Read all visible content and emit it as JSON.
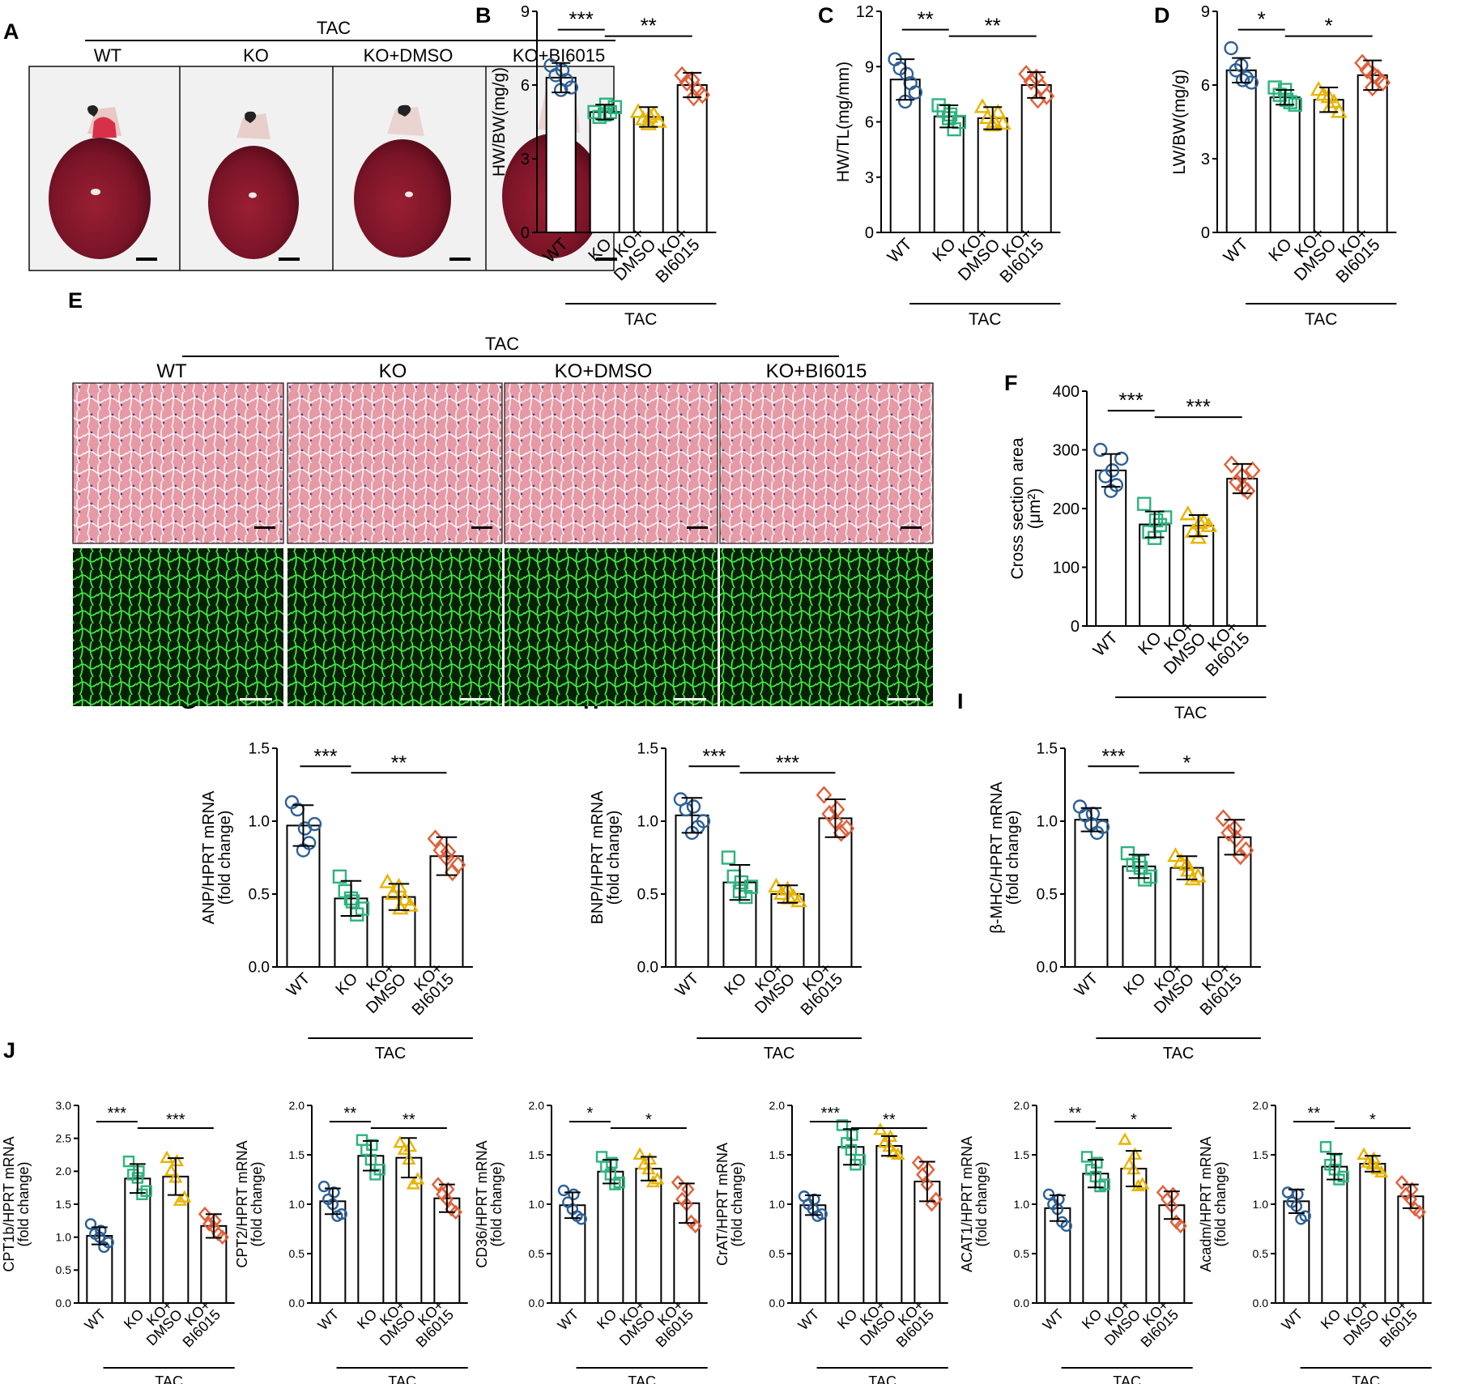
{
  "figure": {
    "labels": {
      "A": "A",
      "B": "B",
      "C": "C",
      "D": "D",
      "E": "E",
      "F": "F",
      "G": "G",
      "H": "H",
      "I": "I",
      "J": "J"
    },
    "colors": {
      "WT": "#2e6096",
      "KO": "#2db37e",
      "KO+DMSO": "#e8b400",
      "KO+BI6015": "#e0603a"
    },
    "group_label": "TAC",
    "markers": {
      "WT": "circle",
      "KO": "square",
      "KO+DMSO": "triangle",
      "KO+BI6015": "diamond"
    }
  },
  "panel_a": {
    "bracket_label": "TAC",
    "groups": [
      "WT",
      "KO",
      "KO+DMSO",
      "KO+BI6015"
    ]
  },
  "panel_e": {
    "bracket_label": "TAC",
    "groups": [
      "WT",
      "KO",
      "KO+DMSO",
      "KO+BI6015"
    ]
  },
  "chart_data": [
    {
      "id": "B",
      "type": "bar",
      "categories": [
        "WT",
        "KO",
        "KO+\nDMSO",
        "KO+\nBI6015"
      ],
      "bracket_label": "TAC",
      "ylabel": "HW/BW(mg/g)",
      "ylim": [
        0,
        9
      ],
      "yticks": [
        "0",
        "3",
        "6",
        "9"
      ],
      "values": [
        6.3,
        4.9,
        4.7,
        6.0
      ],
      "errors": [
        0.6,
        0.3,
        0.4,
        0.5
      ],
      "points": [
        [
          6.8,
          5.9,
          6.4,
          6.2,
          5.8,
          6.6
        ],
        [
          4.9,
          5.1,
          4.7,
          4.9,
          4.8,
          5.2
        ],
        [
          4.9,
          4.5,
          4.6,
          4.8,
          4.4,
          4.7
        ],
        [
          6.4,
          5.6,
          6.1,
          5.8,
          6.2,
          5.5
        ]
      ],
      "significance": [
        {
          "from": 0,
          "to": 1,
          "label": "***"
        },
        {
          "from": 1,
          "to": 3,
          "label": "**"
        }
      ]
    },
    {
      "id": "C",
      "type": "bar",
      "categories": [
        "WT",
        "KO",
        "KO+\nDMSO",
        "KO+\nBI6015"
      ],
      "bracket_label": "TAC",
      "ylabel": "HW/TL(mg/mm)",
      "ylim": [
        0,
        12
      ],
      "yticks": [
        "0",
        "3",
        "6",
        "9",
        "12"
      ],
      "values": [
        8.3,
        6.3,
        6.2,
        8.0
      ],
      "errors": [
        1.1,
        0.6,
        0.6,
        0.7
      ],
      "points": [
        [
          9.4,
          7.6,
          8.9,
          8.1,
          7.1,
          8.6
        ],
        [
          6.9,
          6.0,
          6.6,
          5.6,
          6.2,
          6.4
        ],
        [
          6.8,
          5.9,
          6.2,
          6.5,
          5.8,
          6.0
        ],
        [
          8.6,
          7.4,
          8.2,
          7.9,
          8.4,
          7.2
        ]
      ],
      "significance": [
        {
          "from": 0,
          "to": 1,
          "label": "**"
        },
        {
          "from": 1,
          "to": 3,
          "label": "**"
        }
      ]
    },
    {
      "id": "D",
      "type": "bar",
      "categories": [
        "WT",
        "KO",
        "KO+\nDMSO",
        "KO+\nBI6015"
      ],
      "bracket_label": "TAC",
      "ylabel": "LW/BW(mg/g)",
      "ylim": [
        0,
        9
      ],
      "yticks": [
        "0",
        "3",
        "6",
        "9"
      ],
      "values": [
        6.6,
        5.5,
        5.4,
        6.4
      ],
      "errors": [
        0.5,
        0.3,
        0.5,
        0.6
      ],
      "points": [
        [
          7.5,
          6.1,
          6.6,
          6.3,
          6.8,
          6.2
        ],
        [
          5.9,
          5.2,
          5.6,
          5.3,
          5.8,
          5.4
        ],
        [
          5.8,
          4.9,
          5.6,
          5.3,
          5.5,
          5.1
        ],
        [
          6.9,
          6.1,
          6.6,
          6.3,
          5.9,
          6.4
        ]
      ],
      "significance": [
        {
          "from": 0,
          "to": 1,
          "label": "*"
        },
        {
          "from": 1,
          "to": 3,
          "label": "*"
        }
      ]
    },
    {
      "id": "F",
      "type": "bar",
      "categories": [
        "WT",
        "KO",
        "KO+\nDMSO",
        "KO+\nBI6015"
      ],
      "bracket_label": "TAC",
      "ylabel": "Cross section area",
      "ylabel2": "(μm²)",
      "ylim": [
        0,
        400
      ],
      "yticks": [
        "0",
        "100",
        "200",
        "300",
        "400"
      ],
      "values": [
        265,
        173,
        171,
        251
      ],
      "errors": [
        28,
        22,
        18,
        25
      ],
      "points": [
        [
          300,
          285,
          255,
          240,
          230,
          265
        ],
        [
          208,
          185,
          160,
          172,
          150,
          180
        ],
        [
          190,
          170,
          160,
          178,
          150,
          175
        ],
        [
          275,
          265,
          245,
          230,
          255,
          235
        ]
      ],
      "significance": [
        {
          "from": 0,
          "to": 1,
          "label": "***"
        },
        {
          "from": 1,
          "to": 3,
          "label": "***"
        }
      ]
    },
    {
      "id": "G",
      "type": "bar",
      "categories": [
        "WT",
        "KO",
        "KO+\nDMSO",
        "KO+\nBI6015"
      ],
      "bracket_label": "TAC",
      "ylabel": "ANP/HPRT mRNA",
      "ylabel2": "(fold change)",
      "ylim": [
        0,
        1.5
      ],
      "yticks": [
        "0.0",
        "0.5",
        "1.0",
        "1.5"
      ],
      "values": [
        0.97,
        0.47,
        0.48,
        0.76
      ],
      "errors": [
        0.14,
        0.12,
        0.09,
        0.13
      ],
      "points": [
        [
          1.13,
          0.98,
          1.08,
          0.85,
          0.8,
          0.95
        ],
        [
          0.62,
          0.4,
          0.52,
          0.36,
          0.47,
          0.45
        ],
        [
          0.58,
          0.42,
          0.5,
          0.46,
          0.55,
          0.4
        ],
        [
          0.88,
          0.7,
          0.8,
          0.65,
          0.75,
          0.79
        ]
      ],
      "significance": [
        {
          "from": 0,
          "to": 1,
          "label": "***"
        },
        {
          "from": 1,
          "to": 3,
          "label": "**"
        }
      ]
    },
    {
      "id": "H",
      "type": "bar",
      "categories": [
        "WT",
        "KO",
        "KO+\nDMSO",
        "KO+\nBI6015"
      ],
      "bracket_label": "TAC",
      "ylabel": "BNP/HPRT mRNA",
      "ylabel2": "(fold change)",
      "ylim": [
        0,
        1.5
      ],
      "yticks": [
        "0.0",
        "0.5",
        "1.0",
        "1.5"
      ],
      "values": [
        1.04,
        0.58,
        0.5,
        1.02
      ],
      "errors": [
        0.12,
        0.12,
        0.06,
        0.13
      ],
      "points": [
        [
          1.15,
          1.0,
          1.08,
          0.96,
          0.92,
          1.1
        ],
        [
          0.75,
          0.55,
          0.62,
          0.48,
          0.52,
          0.58
        ],
        [
          0.55,
          0.45,
          0.5,
          0.48,
          0.53,
          0.47
        ],
        [
          1.18,
          0.95,
          1.05,
          0.92,
          1.0,
          1.08
        ]
      ],
      "significance": [
        {
          "from": 0,
          "to": 1,
          "label": "***"
        },
        {
          "from": 1,
          "to": 3,
          "label": "***"
        }
      ]
    },
    {
      "id": "I",
      "type": "bar",
      "categories": [
        "WT",
        "KO",
        "KO+\nDMSO",
        "KO+\nBI6015"
      ],
      "bracket_label": "TAC",
      "ylabel": "β-MHC/HPRT mRNA",
      "ylabel2": "(fold change)",
      "ylim": [
        0,
        1.5
      ],
      "yticks": [
        "0.0",
        "0.5",
        "1.0",
        "1.5"
      ],
      "values": [
        1.01,
        0.69,
        0.68,
        0.89
      ],
      "errors": [
        0.08,
        0.08,
        0.08,
        0.12
      ],
      "points": [
        [
          1.1,
          0.96,
          1.04,
          0.92,
          0.98,
          1.05
        ],
        [
          0.78,
          0.62,
          0.7,
          0.6,
          0.72,
          0.68
        ],
        [
          0.76,
          0.62,
          0.72,
          0.6,
          0.7,
          0.66
        ],
        [
          1.02,
          0.8,
          0.92,
          0.76,
          0.95,
          0.88
        ]
      ],
      "significance": [
        {
          "from": 0,
          "to": 1,
          "label": "***"
        },
        {
          "from": 1,
          "to": 3,
          "label": "*"
        }
      ]
    },
    {
      "id": "J1",
      "type": "bar",
      "categories": [
        "WT",
        "KO",
        "KO+\nDMSO",
        "KO+\nBI6015"
      ],
      "bracket_label": "TAC",
      "ylabel": "CPT1b/HPRT mRNA",
      "ylabel2": "(fold change)",
      "ylim": [
        0,
        3
      ],
      "yticks": [
        "0.0",
        "0.5",
        "1.0",
        "1.5",
        "2.0",
        "2.5",
        "3.0"
      ],
      "values": [
        1.02,
        1.89,
        1.92,
        1.17
      ],
      "errors": [
        0.13,
        0.22,
        0.28,
        0.18
      ],
      "points": [
        [
          1.2,
          0.92,
          1.05,
          0.85,
          1.0,
          1.1
        ],
        [
          2.15,
          1.7,
          1.95,
          1.65,
          1.9,
          2.0
        ],
        [
          2.2,
          1.6,
          2.0,
          1.55,
          1.9,
          2.15
        ],
        [
          1.35,
          1.0,
          1.2,
          1.05,
          1.15,
          1.25
        ]
      ],
      "significance": [
        {
          "from": 0,
          "to": 1,
          "label": "***"
        },
        {
          "from": 1,
          "to": 3,
          "label": "***"
        }
      ]
    },
    {
      "id": "J2",
      "type": "bar",
      "categories": [
        "WT",
        "KO",
        "KO+\nDMSO",
        "KO+\nBI6015"
      ],
      "bracket_label": "TAC",
      "ylabel": "CPT2/HPRT mRNA",
      "ylabel2": "(fold change)",
      "ylim": [
        0,
        2
      ],
      "yticks": [
        "0.0",
        "0.5",
        "1.0",
        "1.5",
        "2.0"
      ],
      "values": [
        1.03,
        1.49,
        1.47,
        1.06
      ],
      "errors": [
        0.13,
        0.15,
        0.2,
        0.14
      ],
      "points": [
        [
          1.18,
          0.9,
          1.05,
          0.88,
          1.0,
          1.12
        ],
        [
          1.65,
          1.35,
          1.55,
          1.3,
          1.45,
          1.6
        ],
        [
          1.62,
          1.25,
          1.55,
          1.2,
          1.45,
          1.58
        ],
        [
          1.2,
          0.92,
          1.1,
          0.95,
          1.05,
          1.15
        ]
      ],
      "significance": [
        {
          "from": 0,
          "to": 1,
          "label": "**"
        },
        {
          "from": 1,
          "to": 3,
          "label": "**"
        }
      ]
    },
    {
      "id": "J3",
      "type": "bar",
      "categories": [
        "WT",
        "KO",
        "KO+\nDMSO",
        "KO+\nBI6015"
      ],
      "bracket_label": "TAC",
      "ylabel": "CD36/HPRT mRNA",
      "ylabel2": "(fold change)",
      "ylim": [
        0,
        2
      ],
      "yticks": [
        "0.0",
        "0.5",
        "1.0",
        "1.5",
        "2.0"
      ],
      "values": [
        0.99,
        1.33,
        1.36,
        1.01
      ],
      "errors": [
        0.13,
        0.12,
        0.12,
        0.2
      ],
      "points": [
        [
          1.14,
          0.85,
          1.02,
          0.88,
          0.95,
          1.1
        ],
        [
          1.48,
          1.22,
          1.38,
          1.2,
          1.3,
          1.42
        ],
        [
          1.5,
          1.25,
          1.4,
          1.22,
          1.35,
          1.45
        ],
        [
          1.22,
          0.78,
          1.05,
          0.82,
          1.0,
          1.15
        ]
      ],
      "significance": [
        {
          "from": 0,
          "to": 1,
          "label": "*"
        },
        {
          "from": 1,
          "to": 3,
          "label": "*"
        }
      ]
    },
    {
      "id": "J4",
      "type": "bar",
      "categories": [
        "WT",
        "KO",
        "KO+\nDMSO",
        "KO+\nBI6015"
      ],
      "bracket_label": "TAC",
      "ylabel": "CrAT/HPRT mRNA",
      "ylabel2": "(fold change)",
      "ylim": [
        0,
        2
      ],
      "yticks": [
        "0.0",
        "0.5",
        "1.0",
        "1.5",
        "2.0"
      ],
      "values": [
        0.99,
        1.58,
        1.59,
        1.23
      ],
      "errors": [
        0.1,
        0.18,
        0.1,
        0.2
      ],
      "points": [
        [
          1.08,
          0.9,
          1.0,
          0.88,
          0.95,
          1.05
        ],
        [
          1.8,
          1.45,
          1.62,
          1.4,
          1.55,
          1.7
        ],
        [
          1.75,
          1.5,
          1.62,
          1.52,
          1.58,
          1.68
        ],
        [
          1.42,
          1.05,
          1.3,
          1.0,
          1.2,
          1.35
        ]
      ],
      "significance": [
        {
          "from": 0,
          "to": 1,
          "label": "***"
        },
        {
          "from": 1,
          "to": 3,
          "label": "**"
        }
      ]
    },
    {
      "id": "J5",
      "type": "bar",
      "categories": [
        "WT",
        "KO",
        "KO+\nDMSO",
        "KO+\nBI6015"
      ],
      "bracket_label": "TAC",
      "ylabel": "ACAT1/HPRT mRNA",
      "ylabel2": "(fold change)",
      "ylim": [
        0,
        2
      ],
      "yticks": [
        "0.0",
        "0.5",
        "1.0",
        "1.5",
        "2.0"
      ],
      "values": [
        0.96,
        1.31,
        1.36,
        0.99
      ],
      "errors": [
        0.13,
        0.14,
        0.18,
        0.14
      ],
      "points": [
        [
          1.1,
          0.78,
          1.0,
          0.82,
          0.95,
          1.05
        ],
        [
          1.48,
          1.2,
          1.35,
          1.18,
          1.28,
          1.42
        ],
        [
          1.65,
          1.2,
          1.4,
          1.18,
          1.35,
          1.5
        ],
        [
          1.12,
          0.78,
          1.05,
          0.82,
          0.98,
          1.1
        ]
      ],
      "significance": [
        {
          "from": 0,
          "to": 1,
          "label": "**"
        },
        {
          "from": 1,
          "to": 3,
          "label": "*"
        }
      ]
    },
    {
      "id": "J6",
      "type": "bar",
      "categories": [
        "WT",
        "KO",
        "KO+\nDMSO",
        "KO+\nBI6015"
      ],
      "bracket_label": "TAC",
      "ylabel": "Acadm/HPRT mRNA",
      "ylabel2": "(fold change)",
      "ylim": [
        0,
        2
      ],
      "yticks": [
        "0.0",
        "0.5",
        "1.0",
        "1.5",
        "2.0"
      ],
      "values": [
        1.03,
        1.38,
        1.41,
        1.08
      ],
      "errors": [
        0.12,
        0.13,
        0.08,
        0.12
      ],
      "points": [
        [
          1.12,
          0.88,
          1.02,
          0.85,
          0.98,
          1.1
        ],
        [
          1.58,
          1.28,
          1.4,
          1.25,
          1.35,
          1.45
        ],
        [
          1.5,
          1.32,
          1.42,
          1.35,
          1.4,
          1.46
        ],
        [
          1.22,
          0.92,
          1.1,
          0.95,
          1.05,
          1.15
        ]
      ],
      "significance": [
        {
          "from": 0,
          "to": 1,
          "label": "**"
        },
        {
          "from": 1,
          "to": 3,
          "label": "*"
        }
      ]
    }
  ]
}
